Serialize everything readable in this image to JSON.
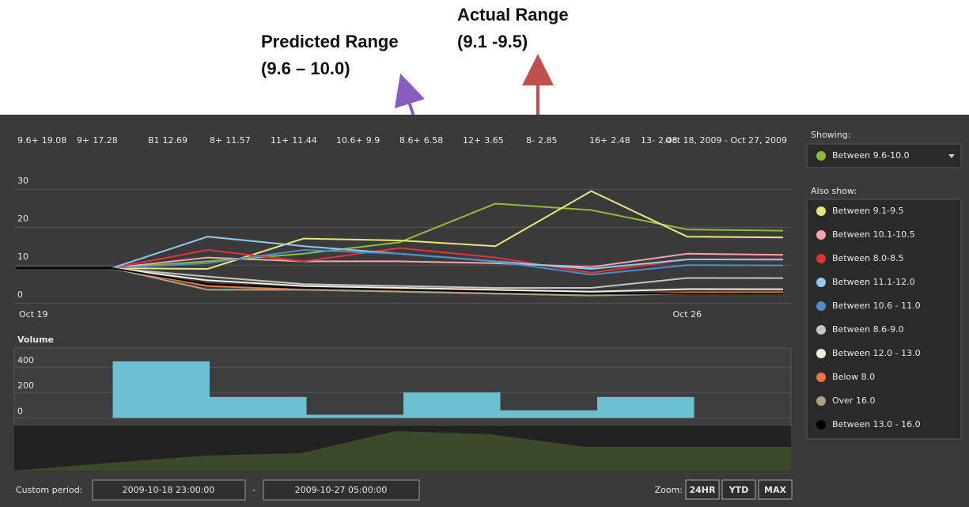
{
  "annotations": {
    "predicted": {
      "title": "Predicted Range",
      "range": "(9.6 – 10.0)"
    },
    "actual": {
      "title": "Actual Range",
      "range": "(9.1 -9.5)"
    }
  },
  "chart_data": [
    {
      "type": "line",
      "date_range": "Oct 18, 2009 - Oct 27, 2009",
      "categories": [
        "Oct 19",
        null,
        null,
        null,
        null,
        null,
        null,
        "Oct 26",
        null
      ],
      "ylim": [
        -1,
        34
      ],
      "yticks": [
        0,
        10,
        20,
        30
      ],
      "grid": true,
      "series": [
        {
          "name": "9.6+",
          "color": "#8cbc3a",
          "values": [
            9.2,
            9.2,
            11,
            13,
            16,
            26.2,
            24.5,
            19.4,
            19.08
          ]
        },
        {
          "name": "9+",
          "color": "#e6e67c",
          "values": [
            9.2,
            9.2,
            9,
            17,
            16.5,
            15,
            29.5,
            17.5,
            17.28
          ]
        },
        {
          "name": "B1",
          "color": "#f2a4ac",
          "values": [
            9.2,
            9.2,
            12,
            11,
            11,
            10.5,
            9.5,
            13,
            12.69
          ]
        },
        {
          "name": "8+",
          "color": "#e03434",
          "values": [
            9.2,
            9.2,
            14,
            11,
            14.5,
            12,
            8,
            11.5,
            11.57
          ]
        },
        {
          "name": "11+",
          "color": "#92c8ea",
          "values": [
            9.2,
            9.2,
            17.5,
            15,
            13,
            11,
            9,
            11.5,
            11.44
          ]
        },
        {
          "name": "10.6+",
          "color": "#4a8ccc",
          "values": [
            9.2,
            9.2,
            10.5,
            14,
            13,
            11,
            7.5,
            10,
            9.9
          ]
        },
        {
          "name": "8.6+",
          "color": "#c4c4c4",
          "values": [
            9.2,
            9.2,
            7,
            5,
            4.5,
            4,
            4,
            6.6,
            6.58
          ]
        },
        {
          "name": "12+",
          "color": "#f2eee2",
          "values": [
            9.2,
            9.2,
            6,
            4.5,
            4,
            3.5,
            3,
            3.7,
            3.65
          ]
        },
        {
          "name": "8-",
          "color": "#ea7444",
          "values": [
            9.2,
            9.2,
            4.5,
            3.5,
            3.2,
            2.5,
            2,
            2.8,
            2.85
          ]
        },
        {
          "name": "16+",
          "color": "#aaa282",
          "values": [
            9.2,
            9.2,
            3.5,
            3.5,
            3,
            2.5,
            2,
            2.5,
            2.48
          ]
        },
        {
          "name": "13-",
          "color": "#000000",
          "values": [
            9.2,
            9.2,
            5,
            4,
            3.5,
            3,
            2.5,
            2.5,
            2.48
          ]
        }
      ]
    },
    {
      "type": "bar",
      "title": "Volume",
      "categories": [
        null,
        null,
        null,
        null,
        null,
        null,
        null,
        null
      ],
      "values": [
        0,
        445,
        165,
        25,
        200,
        60,
        165,
        0
      ],
      "color": "#6cc0d2",
      "ylim": [
        -60,
        550
      ],
      "yticks": [
        0,
        200,
        400
      ],
      "grid": true
    }
  ],
  "sidebar": {
    "showing_label": "Showing:",
    "showing": {
      "label": "Between 9.6-10.0",
      "color": "#8cbc3a"
    },
    "also_label": "Also show:",
    "items": [
      {
        "label": "Between 9.1-9.5",
        "color": "#e6e67c"
      },
      {
        "label": "Between 10.1-10.5",
        "color": "#f2a4ac"
      },
      {
        "label": "Between 8.0-8.5",
        "color": "#e03434"
      },
      {
        "label": "Between 11.1-12.0",
        "color": "#92c8ea"
      },
      {
        "label": "Between 10.6 - 11.0",
        "color": "#4a8ccc"
      },
      {
        "label": "Between 8.6-9.0",
        "color": "#c4c4c4"
      },
      {
        "label": "Between 12.0 - 13.0",
        "color": "#f2eee2"
      },
      {
        "label": "Below 8.0",
        "color": "#ea7444"
      },
      {
        "label": "Over 16.0",
        "color": "#aaa282"
      },
      {
        "label": "Between 13.0 - 16.0",
        "color": "#000000"
      }
    ]
  },
  "footer": {
    "custom_label": "Custom period:",
    "start": "2009-10-18 23:00:00",
    "separator": "-",
    "end": "2009-10-27 05:00:00",
    "zoom_label": "Zoom:",
    "buttons": [
      "24HR",
      "YTD",
      "MAX"
    ]
  }
}
